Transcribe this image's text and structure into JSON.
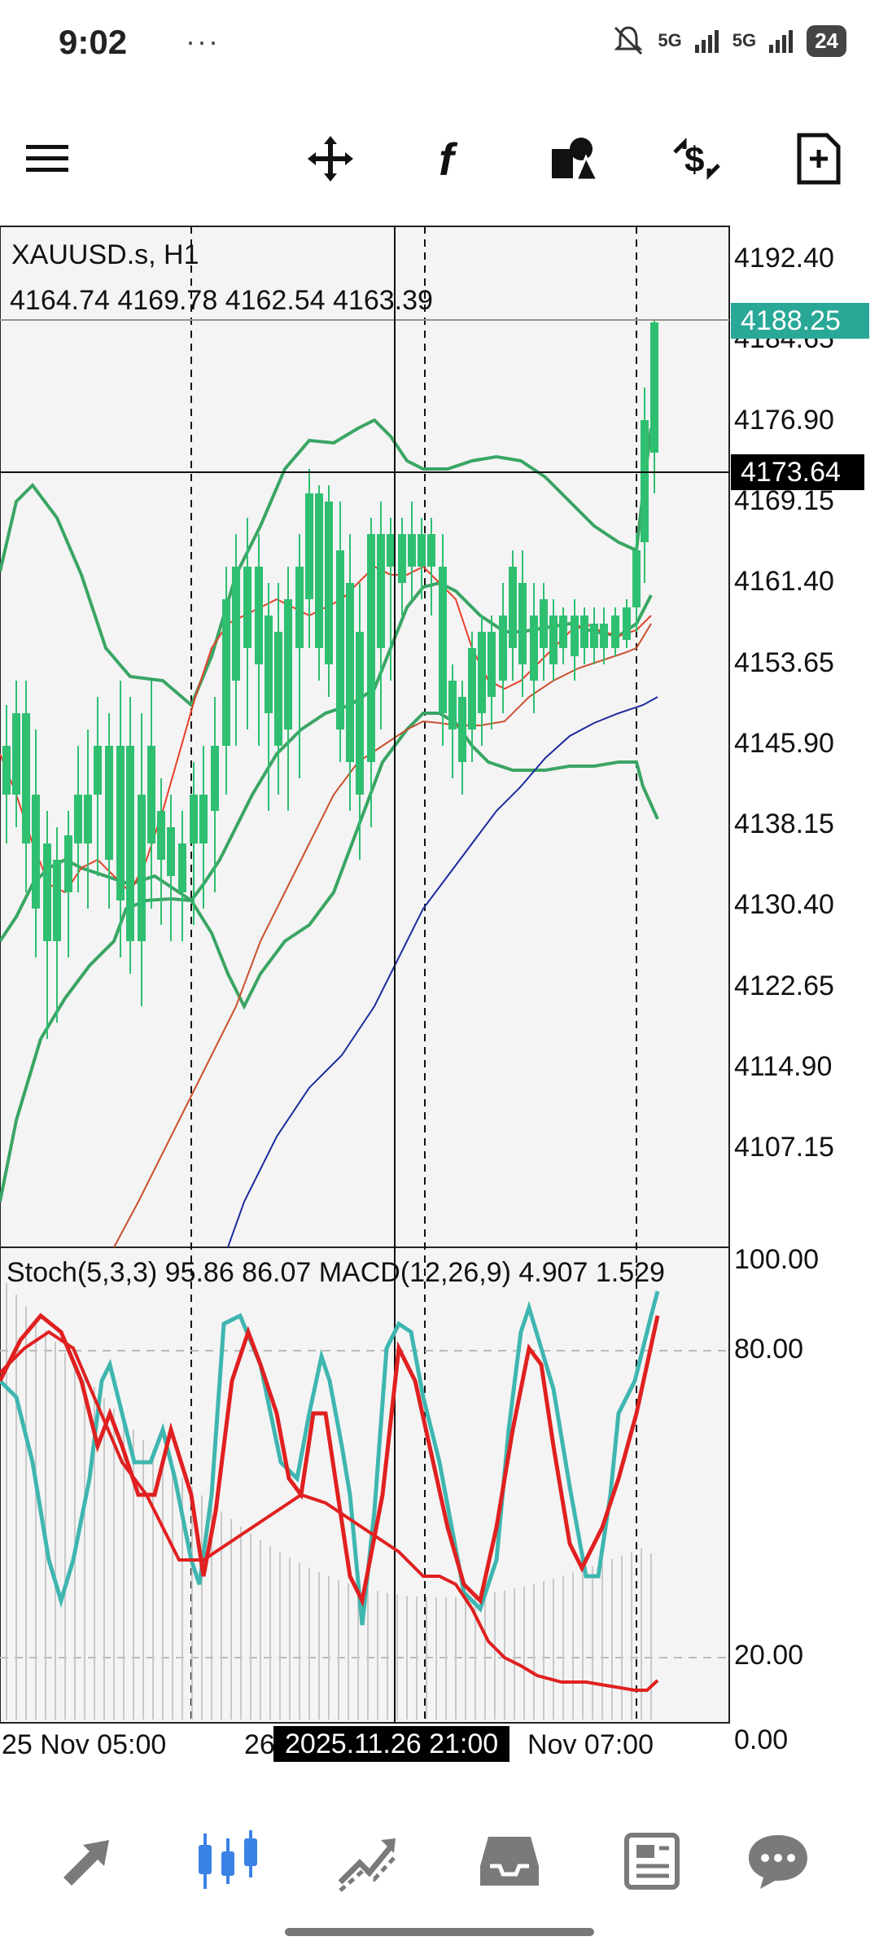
{
  "status_bar": {
    "time": "9:02",
    "overflow": "···",
    "network_1": "5G",
    "network_2": "5G",
    "battery": "24",
    "icons": [
      "mute-icon",
      "signal-icon",
      "battery-icon"
    ]
  },
  "toolbar": {
    "icons": [
      "menu-icon",
      "crosshair-icon",
      "indicators-icon",
      "objects-icon",
      "trade-icon",
      "template-icon"
    ]
  },
  "chart": {
    "symbol_label": "XAUUSD.s, H1",
    "ohlc_label": "4164.74 4169.78 4162.54 4163.39",
    "current_price_label": "4188.25",
    "crosshair_price_label": "4173.64",
    "price_axis": [
      "4192.40",
      "4184.65",
      "4176.90",
      "4169.15",
      "4161.40",
      "4153.65",
      "4145.90",
      "4138.15",
      "4130.40",
      "4122.65",
      "4114.90",
      "4107.15"
    ],
    "indicator_label": "Stoch(5,3,3) 95.86 86.07 MACD(12,26,9) 4.907 1.529",
    "indicator_axis": [
      "100.00",
      "80.00",
      "20.00",
      "0.00"
    ],
    "time_axis_left": "25 Nov 05:00",
    "time_axis_partial": "26",
    "time_axis_right": "Nov 07:00",
    "crosshair_time_label": "2025.11.26 21:00"
  },
  "colors": {
    "bull": "#e8402a",
    "bear": "#2fbf71",
    "bollinger": "#3aa564",
    "ma_slow": "#1d2a9e",
    "ma_mid": "#c9502e",
    "stoch_main": "#3fb6b0",
    "stoch_signal": "#e02020",
    "price_tag": "#2aa897"
  },
  "bottom_nav": {
    "items": [
      "quotes-icon",
      "chart-icon",
      "trade-icon",
      "history-icon",
      "news-icon",
      "messages-icon"
    ],
    "active": "chart-icon"
  }
}
